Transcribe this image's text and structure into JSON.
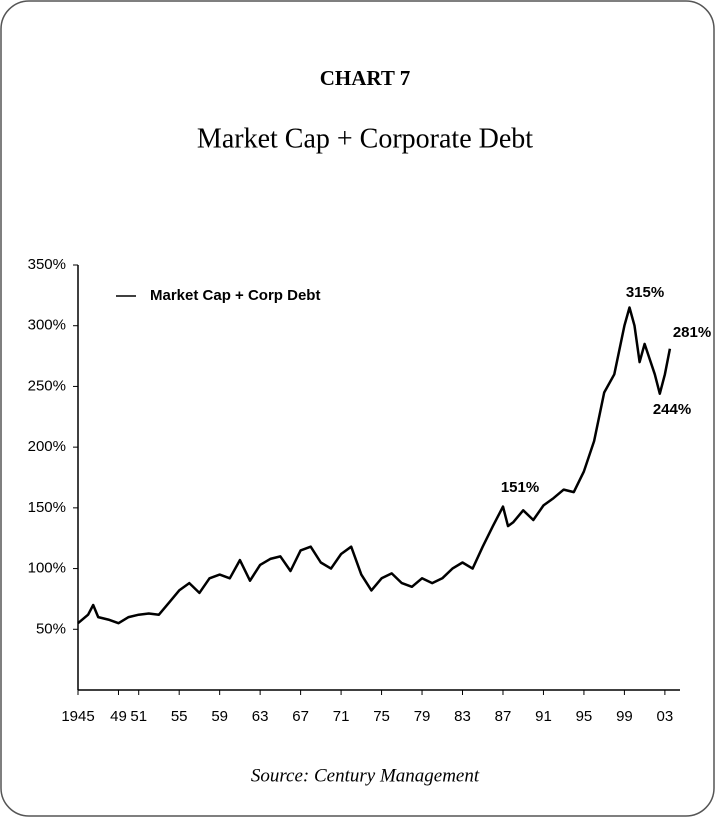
{
  "chart_data": {
    "type": "line",
    "title": "CHART 7",
    "subtitle": "Market Cap + Corporate Debt",
    "source": "Source: Century Management",
    "x": [
      1945,
      1946,
      1946.5,
      1947,
      1948,
      1949,
      1950,
      1951,
      1952,
      1953,
      1954,
      1955,
      1956,
      1957,
      1958,
      1959,
      1960,
      1961,
      1962,
      1963,
      1964,
      1965,
      1966,
      1967,
      1968,
      1969,
      1970,
      1971,
      1972,
      1973,
      1974,
      1975,
      1976,
      1977,
      1978,
      1979,
      1980,
      1981,
      1982,
      1983,
      1984,
      1985,
      1986,
      1987,
      1987.5,
      1988,
      1989,
      1990,
      1991,
      1992,
      1993,
      1994,
      1995,
      1996,
      1997,
      1998,
      1999,
      1999.5,
      2000,
      2000.5,
      2001,
      2002,
      2002.5,
      2003,
      2003.5
    ],
    "series": [
      {
        "name": "Market Cap + Corp Debt",
        "color": "#000000",
        "values": [
          55,
          62,
          70,
          60,
          58,
          55,
          60,
          62,
          63,
          62,
          72,
          82,
          88,
          80,
          92,
          95,
          92,
          107,
          90,
          103,
          108,
          110,
          98,
          115,
          118,
          105,
          100,
          112,
          118,
          95,
          82,
          92,
          96,
          88,
          85,
          92,
          88,
          92,
          100,
          105,
          100,
          118,
          135,
          151,
          135,
          138,
          148,
          140,
          152,
          158,
          165,
          163,
          180,
          205,
          245,
          260,
          300,
          315,
          300,
          270,
          285,
          260,
          244,
          260,
          281
        ]
      }
    ],
    "annotations": [
      "151%",
      "315%",
      "281%",
      "244%"
    ],
    "xlim": [
      1945,
      2004
    ],
    "xticks": [
      1945,
      {
        "value": 1949,
        "label": "49"
      },
      {
        "value": 1951,
        "label": "51"
      },
      {
        "value": 1955,
        "label": "55"
      },
      {
        "value": 1959,
        "label": "59"
      },
      {
        "value": 1963,
        "label": "63"
      },
      {
        "value": 1967,
        "label": "67"
      },
      {
        "value": 1971,
        "label": "71"
      },
      {
        "value": 1975,
        "label": "75"
      },
      {
        "value": 1979,
        "label": "79"
      },
      {
        "value": 1983,
        "label": "83"
      },
      {
        "value": 1987,
        "label": "87"
      },
      {
        "value": 1991,
        "label": "91"
      },
      {
        "value": 1995,
        "label": "95"
      },
      {
        "value": 1999,
        "label": "99"
      },
      {
        "value": 2003,
        "label": "03"
      }
    ],
    "ylim": [
      0,
      350
    ],
    "yticks": [
      {
        "value": 50,
        "label": "50%"
      },
      {
        "value": 100,
        "label": "100%"
      },
      {
        "value": 150,
        "label": "150%"
      },
      {
        "value": 200,
        "label": "200%"
      },
      {
        "value": 250,
        "label": "250%"
      },
      {
        "value": 300,
        "label": "300%"
      },
      {
        "value": 350,
        "label": "350%"
      }
    ],
    "legend": "upper left"
  }
}
